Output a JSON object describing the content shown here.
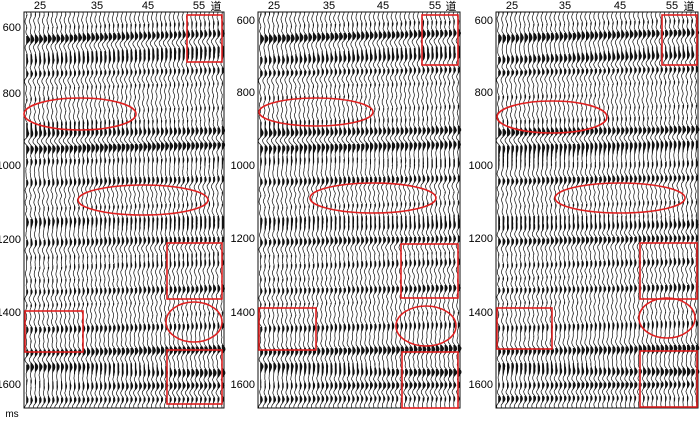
{
  "panels": [
    {
      "top_ticks": [
        "25",
        "35",
        "45",
        "55"
      ],
      "trace_unit": "道",
      "left_ticks": [
        "600",
        "800",
        "1000",
        "1200",
        "1400",
        "1600"
      ],
      "time_unit": "ms"
    },
    {
      "top_ticks": [
        "25",
        "35",
        "45",
        "55"
      ],
      "trace_unit": "道",
      "left_ticks": [
        "600",
        "800",
        "1000",
        "1200",
        "1400",
        "1600"
      ],
      "time_unit": "ms"
    },
    {
      "top_ticks": [
        "25",
        "35",
        "45",
        "55"
      ],
      "trace_unit": "道",
      "left_ticks": [
        "600",
        "800",
        "1000",
        "1200",
        "1400",
        "1600"
      ],
      "time_unit": "ms"
    }
  ],
  "colors": {
    "wiggle": "#111111",
    "annotation": "#e02020",
    "background": "#ffffff"
  }
}
